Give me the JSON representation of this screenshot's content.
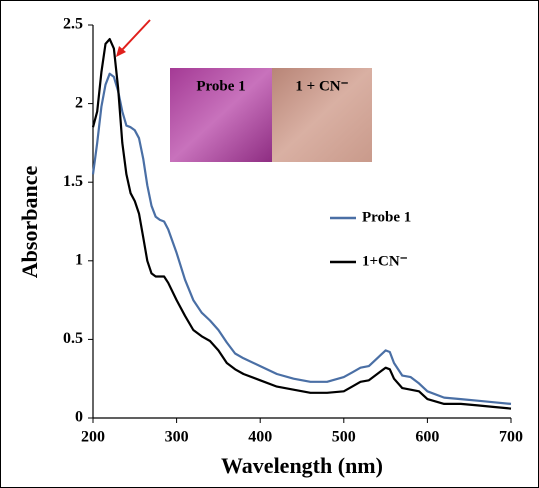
{
  "chart_data": {
    "type": "line",
    "y_label": "Absorbance",
    "x_label": "Wavelength (nm)",
    "inset_labels": [
      "Probe 1",
      "1 + CN⁻"
    ],
    "x": [
      200,
      205,
      210,
      215,
      220,
      225,
      230,
      235,
      240,
      245,
      250,
      255,
      260,
      265,
      270,
      275,
      280,
      285,
      290,
      300,
      310,
      320,
      330,
      340,
      350,
      360,
      370,
      380,
      400,
      420,
      440,
      460,
      480,
      500,
      510,
      520,
      530,
      540,
      550,
      555,
      560,
      570,
      580,
      590,
      600,
      620,
      640,
      660,
      680,
      700
    ],
    "series": [
      {
        "name": "Probe 1",
        "color": "#4a6fa5",
        "values": [
          1.55,
          1.75,
          1.98,
          2.12,
          2.19,
          2.17,
          2.08,
          1.95,
          1.86,
          1.85,
          1.83,
          1.78,
          1.65,
          1.48,
          1.35,
          1.28,
          1.26,
          1.25,
          1.2,
          1.05,
          0.88,
          0.75,
          0.67,
          0.62,
          0.56,
          0.48,
          0.41,
          0.38,
          0.33,
          0.28,
          0.25,
          0.23,
          0.23,
          0.26,
          0.29,
          0.32,
          0.33,
          0.38,
          0.43,
          0.42,
          0.35,
          0.27,
          0.26,
          0.22,
          0.17,
          0.13,
          0.12,
          0.11,
          0.1,
          0.09
        ]
      },
      {
        "name": "1+CN⁻",
        "color": "#000000",
        "values": [
          1.85,
          1.95,
          2.2,
          2.38,
          2.41,
          2.35,
          2.1,
          1.75,
          1.55,
          1.43,
          1.38,
          1.3,
          1.15,
          1.0,
          0.92,
          0.9,
          0.9,
          0.9,
          0.86,
          0.75,
          0.65,
          0.56,
          0.52,
          0.49,
          0.43,
          0.35,
          0.31,
          0.28,
          0.24,
          0.2,
          0.18,
          0.16,
          0.16,
          0.17,
          0.2,
          0.23,
          0.24,
          0.28,
          0.32,
          0.31,
          0.25,
          0.19,
          0.18,
          0.17,
          0.12,
          0.09,
          0.09,
          0.08,
          0.07,
          0.06
        ]
      }
    ],
    "xlim": [
      200,
      700
    ],
    "xticks": [
      200,
      300,
      400,
      500,
      600,
      700
    ],
    "ylim": [
      0,
      2.5
    ],
    "yticks": [
      0,
      0.5,
      1,
      1.5,
      2,
      2.5
    ]
  }
}
